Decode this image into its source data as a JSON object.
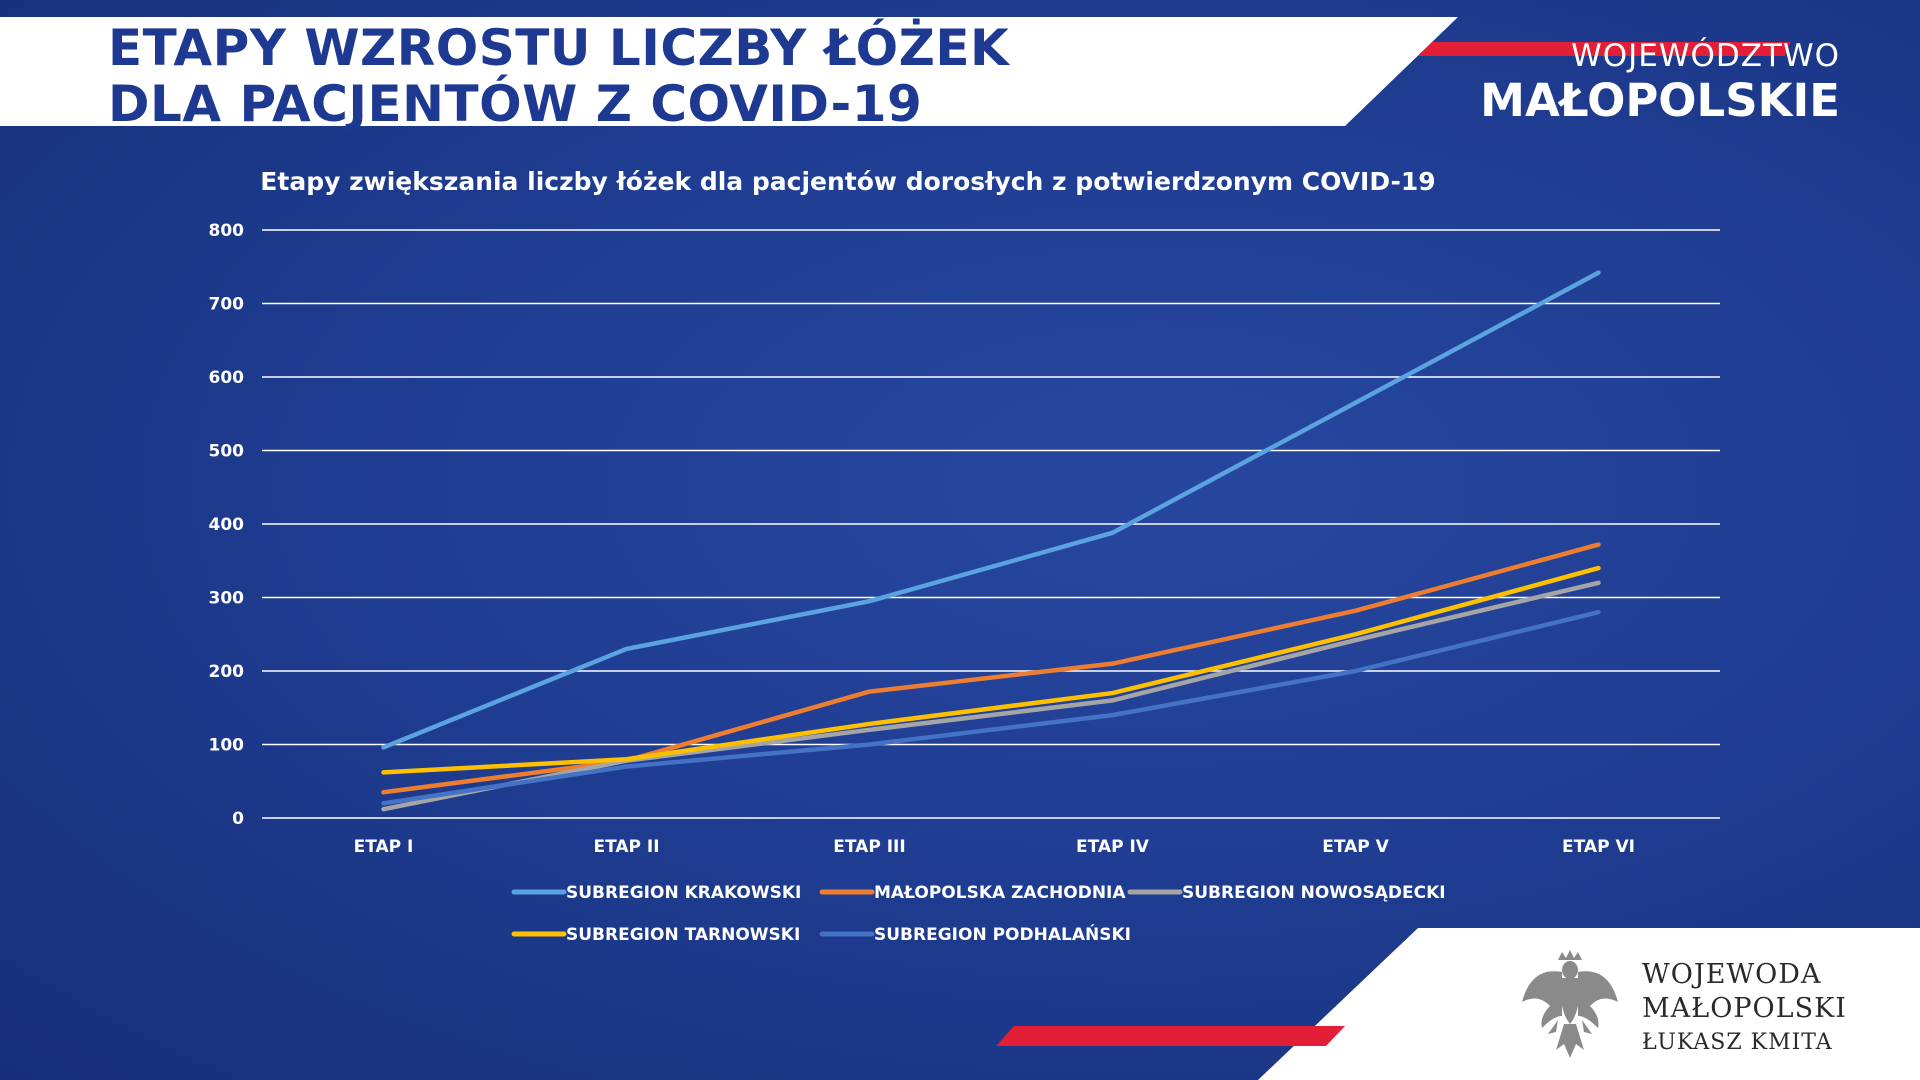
{
  "header": {
    "title_line1": "ETAPY WZROSTU LICZBY ŁÓŻEK",
    "title_line2": "DLA PACJENTÓW Z COVID-19"
  },
  "brand": {
    "line1": "WOJEWÓDZTWO",
    "line2": "MAŁOPOLSKIE"
  },
  "footer": {
    "line1": "WOJEWODA",
    "line2": "MAŁOPOLSKI",
    "line3": "ŁUKASZ KMITA",
    "emblem_icon": "white-eagle-emblem-icon"
  },
  "colors": {
    "background": "#1f3d92",
    "header_band": "#ffffff",
    "accent_red": "#e31e37",
    "title_blue": "#1d3991"
  },
  "chart_data": {
    "type": "line",
    "title": "Etapy zwiększania liczby łóżek dla pacjentów dorosłych z potwierdzonym COVID-19",
    "categories": [
      "ETAP I",
      "ETAP II",
      "ETAP III",
      "ETAP IV",
      "ETAP V",
      "ETAP VI"
    ],
    "ylim": [
      0,
      800
    ],
    "yticks": [
      0,
      100,
      200,
      300,
      400,
      500,
      600,
      700,
      800
    ],
    "grid": true,
    "legend_position": "bottom",
    "series": [
      {
        "name": "SUBREGION KRAKOWSKI",
        "color": "#5ba3e0",
        "values": [
          96,
          230,
          295,
          388,
          565,
          742
        ]
      },
      {
        "name": "MAŁOPOLSKA ZACHODNIA",
        "color": "#ed7d31",
        "values": [
          35,
          78,
          172,
          210,
          282,
          372
        ]
      },
      {
        "name": "SUBREGION NOWOSĄDECKI",
        "color": "#a5a5a5",
        "values": [
          12,
          78,
          120,
          160,
          242,
          320
        ]
      },
      {
        "name": "SUBREGION TARNOWSKI",
        "color": "#ffc000",
        "values": [
          62,
          80,
          128,
          170,
          250,
          340
        ]
      },
      {
        "name": "SUBREGION PODHALAŃSKI",
        "color": "#4472c4",
        "values": [
          20,
          70,
          100,
          140,
          200,
          280
        ]
      }
    ]
  }
}
